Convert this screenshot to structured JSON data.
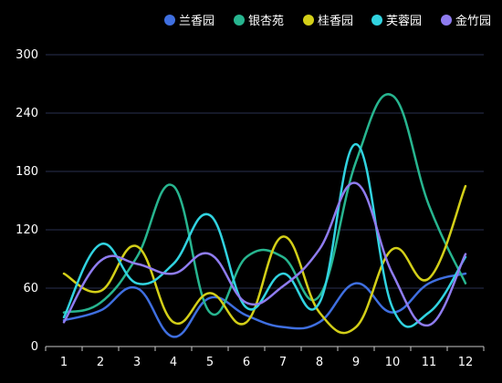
{
  "chart_data": {
    "type": "line",
    "smooth": true,
    "legend_position": "top-right",
    "grid": true,
    "x": [
      "1",
      "2",
      "3",
      "4",
      "5",
      "6",
      "7",
      "8",
      "9",
      "10",
      "11",
      "12"
    ],
    "ylim": [
      0,
      300
    ],
    "yticks": [
      "0",
      "60",
      "120",
      "180",
      "240",
      "300"
    ],
    "series": [
      {
        "name": "兰香园",
        "color": "#3f6fe0",
        "values": [
          27,
          37,
          60,
          10,
          50,
          32,
          20,
          25,
          65,
          35,
          65,
          75
        ]
      },
      {
        "name": "银杏苑",
        "color": "#27b58f",
        "values": [
          35,
          45,
          92,
          165,
          35,
          92,
          92,
          52,
          190,
          258,
          145,
          65
        ]
      },
      {
        "name": "桂香园",
        "color": "#d3cf18",
        "values": [
          75,
          57,
          103,
          25,
          55,
          25,
          113,
          35,
          20,
          100,
          70,
          165
        ]
      },
      {
        "name": "芙蓉园",
        "color": "#31d3e0",
        "values": [
          30,
          105,
          65,
          85,
          135,
          40,
          75,
          45,
          208,
          40,
          35,
          92
        ]
      },
      {
        "name": "金竹园",
        "color": "#8f7cf0",
        "values": [
          25,
          88,
          85,
          75,
          95,
          45,
          62,
          100,
          168,
          75,
          22,
          95
        ]
      }
    ]
  }
}
